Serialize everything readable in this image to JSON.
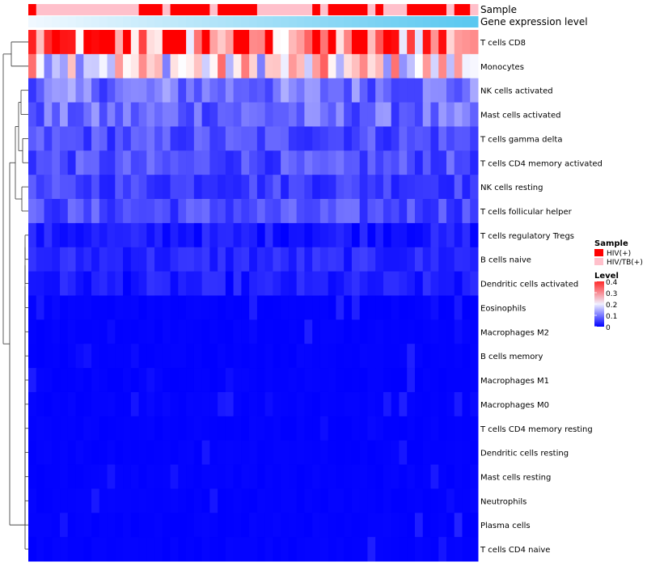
{
  "chart_data": {
    "type": "heatmap",
    "title": "",
    "annotation_tracks": [
      "Sample",
      "Gene expression level"
    ],
    "rows": [
      "T cells CD8",
      "Monocytes",
      "NK cells activated",
      "Mast cells activated",
      "T cells gamma delta",
      "T cells CD4 memory activated",
      "NK cells resting",
      "T cells follicular helper",
      "T cells regulatory  Tregs",
      "B cells naive",
      "Dendritic cells activated",
      "Eosinophils",
      "Macrophages M2",
      "B cells memory",
      "Macrophages M1",
      "Macrophages M0",
      "T cells CD4 memory resting",
      "Dendritic cells resting",
      "Mast cells resting",
      "Neutrophils",
      "Plasma cells",
      "T cells CD4 naive"
    ],
    "sample_groups": [
      "HIV(+)",
      "HIV/TB(+)",
      "HIV/TB(+)",
      "HIV/TB(+)",
      "HIV/TB(+)",
      "HIV/TB(+)",
      "HIV/TB(+)",
      "HIV/TB(+)",
      "HIV/TB(+)",
      "HIV/TB(+)",
      "HIV/TB(+)",
      "HIV/TB(+)",
      "HIV/TB(+)",
      "HIV/TB(+)",
      "HIV(+)",
      "HIV(+)",
      "HIV(+)",
      "HIV/TB(+)",
      "HIV(+)",
      "HIV(+)",
      "HIV(+)",
      "HIV(+)",
      "HIV(+)",
      "HIV/TB(+)",
      "HIV(+)",
      "HIV(+)",
      "HIV(+)",
      "HIV(+)",
      "HIV(+)",
      "HIV/TB(+)",
      "HIV/TB(+)",
      "HIV/TB(+)",
      "HIV/TB(+)",
      "HIV/TB(+)",
      "HIV/TB(+)",
      "HIV/TB(+)",
      "HIV(+)",
      "HIV/TB(+)",
      "HIV(+)",
      "HIV(+)",
      "HIV(+)",
      "HIV(+)",
      "HIV(+)",
      "HIV/TB(+)",
      "HIV(+)",
      "HIV/TB(+)",
      "HIV/TB(+)",
      "HIV/TB(+)",
      "HIV(+)",
      "HIV(+)",
      "HIV(+)",
      "HIV(+)",
      "HIV(+)",
      "HIV/TB(+)",
      "HIV(+)",
      "HIV(+)",
      "HIV/TB(+)"
    ],
    "row_means": [
      0.32,
      0.21,
      0.09,
      0.08,
      0.06,
      0.06,
      0.05,
      0.06,
      0.02,
      0.03,
      0.02,
      0.01,
      0.01,
      0.01,
      0.005,
      0.01,
      0.003,
      0.003,
      0.002,
      0.001,
      0.008,
      0.004
    ],
    "color_scale": {
      "min": 0,
      "max": 0.4,
      "low": "#0000ff",
      "mid": "#ffffff",
      "high": "#ff0000"
    },
    "legend": {
      "sample_title": "Sample",
      "sample_entries": [
        {
          "label": "HIV(+)",
          "color": "#ff0000"
        },
        {
          "label": "HIV/TB(+)",
          "color": "#ffc0cb"
        }
      ],
      "level_title": "Level",
      "level_ticks": [
        "0.4",
        "0.3",
        "0.2",
        "0.1",
        "0"
      ]
    }
  }
}
